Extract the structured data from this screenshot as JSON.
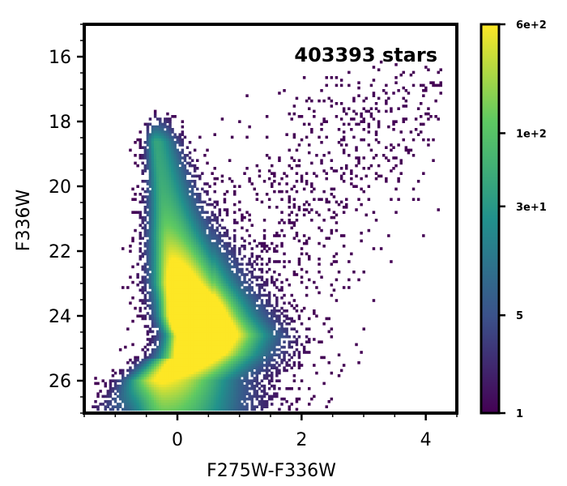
{
  "chart_data": {
    "type": "heatmap",
    "xlabel": "F275W-F336W",
    "ylabel": "F336W",
    "xlim": [
      -1.5,
      4.5
    ],
    "ylim": [
      27,
      15
    ],
    "y_inverted": true,
    "x_ticks": [
      0,
      2,
      4
    ],
    "x_tick_labels": [
      "0",
      "2",
      "4"
    ],
    "y_ticks": [
      16,
      18,
      20,
      22,
      24,
      26
    ],
    "y_tick_labels": [
      "16",
      "18",
      "20",
      "22",
      "24",
      "26"
    ],
    "annotation": "403393 stars",
    "colormap": "viridis",
    "color_scale": "log",
    "colorbar": {
      "range": [
        1,
        600
      ],
      "tick_values": [
        1,
        5,
        30,
        100,
        600
      ],
      "tick_labels": [
        "1",
        "5",
        "3e+1",
        "1e+2",
        "6e+2"
      ]
    },
    "density_ridge": [
      {
        "mag": 18.5,
        "color": -0.35
      },
      {
        "mag": 20.0,
        "color": -0.25
      },
      {
        "mag": 21.5,
        "color": -0.15
      },
      {
        "mag": 23.0,
        "color": 0.0
      },
      {
        "mag": 24.0,
        "color": 0.2
      },
      {
        "mag": 24.6,
        "color": 0.4
      },
      {
        "mag": 25.3,
        "color": 0.2
      },
      {
        "mag": 26.0,
        "color": -0.2
      }
    ],
    "peak_density_region": {
      "color": 0.2,
      "mag": 24.3
    }
  }
}
